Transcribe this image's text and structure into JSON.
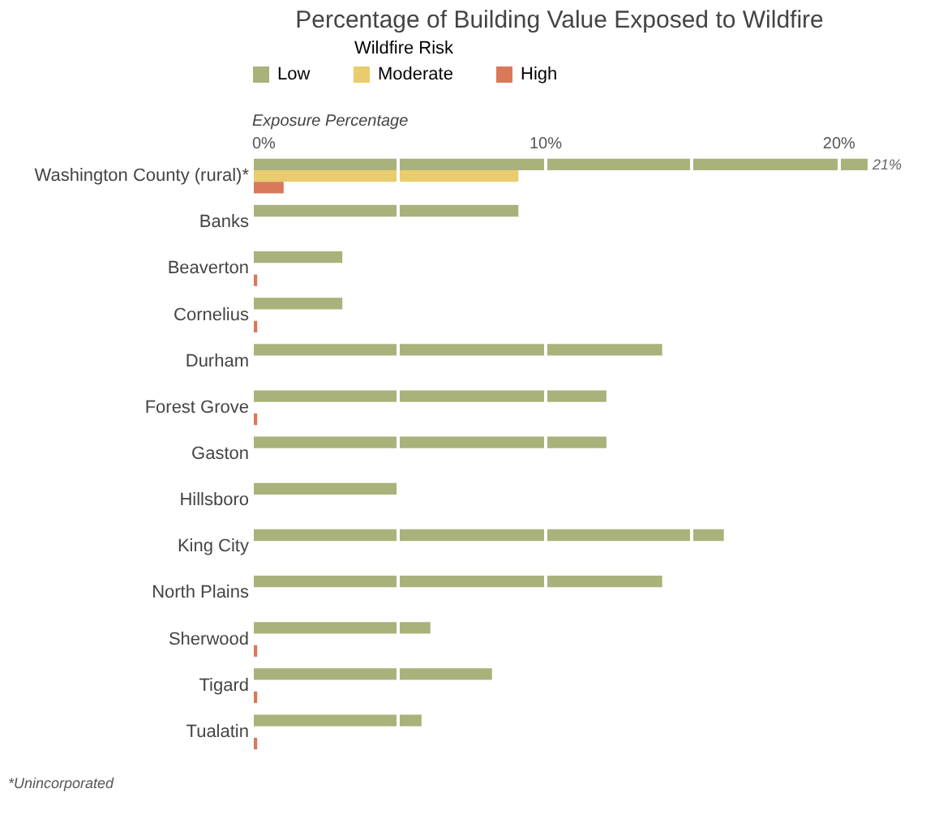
{
  "chart_data": {
    "type": "bar",
    "orientation": "horizontal",
    "title": "Percentage of Building Value Exposed to Wildfire",
    "legend_title": "Wildfire Risk",
    "xlabel": "Exposure Percentage",
    "categories": [
      "Washington County (rural)*",
      "Banks",
      "Beaverton",
      "Cornelius",
      "Durham",
      "Forest Grove",
      "Gaston",
      "Hillsboro",
      "King City",
      "North Plains",
      "Sherwood",
      "Tigard",
      "Tualatin"
    ],
    "series": [
      {
        "name": "Low",
        "color": "#a9b27a",
        "values": [
          21,
          9.1,
          3.1,
          3.1,
          14.0,
          12.1,
          12.1,
          5.0,
          16.1,
          14.0,
          6.1,
          8.2,
          5.8
        ],
        "value_labels": [
          "21%",
          null,
          null,
          null,
          null,
          null,
          null,
          null,
          null,
          null,
          null,
          null,
          null
        ]
      },
      {
        "name": "Moderate",
        "color": "#e8cc6e",
        "values": [
          9.1,
          null,
          null,
          null,
          null,
          null,
          null,
          null,
          null,
          null,
          null,
          null,
          null
        ]
      },
      {
        "name": "High",
        "color": "#d9795a",
        "values": [
          1.1,
          null,
          0.2,
          0.2,
          null,
          0.2,
          null,
          null,
          null,
          null,
          0.2,
          0.2,
          0.2
        ]
      }
    ],
    "xlim": [
      0,
      21
    ],
    "xticks": [
      {
        "value": 0,
        "label": "0%"
      },
      {
        "value": 5,
        "label": null
      },
      {
        "value": 10,
        "label": "10%"
      },
      {
        "value": 15,
        "label": null
      },
      {
        "value": 20,
        "label": "20%"
      }
    ],
    "grid": "x",
    "legend": "top",
    "annotations": [
      "*Unincorporated"
    ]
  }
}
